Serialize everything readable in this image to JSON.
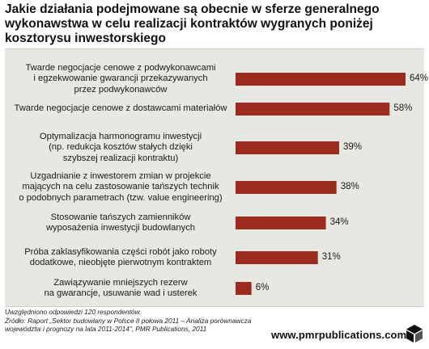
{
  "title_lines": [
    "Jakie działania podejmowane są obecnie w sferze generalnego",
    "wykonawstwa w celu realizacji kontraktów wygranych poniżej",
    "kosztorysu inwestorskiego"
  ],
  "chart_data": {
    "type": "bar",
    "orientation": "horizontal",
    "title": "Jakie działania podejmowane są obecnie w sferze generalnego wykonawstwa w celu realizacji kontraktów wygranych poniżej kosztorysu inwestorskiego",
    "categories": [
      [
        "Twarde negocjacje cenowe z podwykonawcami",
        "i egzekwowanie gwarancji przekazywanych",
        "przez podwykonawców"
      ],
      [
        "Twarde negocjacje cenowe z dostawcami materiałów"
      ],
      [
        "Optymalizacja harmonogramu inwestycji",
        "(np. redukcja kosztów stałych dzięki",
        "szybszej realizacji kontraktu)"
      ],
      [
        "Uzgadnianie z inwestorem zmian w projekcie",
        "mających na celu zastosowanie tańszych technik",
        "o podobnych parametrach (tzw. value engineering)"
      ],
      [
        "Stosowanie tańszych zamienników",
        "wyposażenia inwestycji budowlanych"
      ],
      [
        "Próba zaklasyfikowania części robót jako roboty",
        "dodatkowe, nieobjęte pierwotnym kontraktem"
      ],
      [
        "Zawiązywanie mniejszych rezerw",
        "na gwarancje, usuwanie wad i usterek"
      ]
    ],
    "values": [
      64,
      58,
      39,
      38,
      34,
      31,
      6
    ],
    "value_labels": [
      "64%",
      "58%",
      "39%",
      "38%",
      "34%",
      "31%",
      "6%"
    ],
    "unit": "%",
    "xlim": [
      0,
      64
    ],
    "grid": false,
    "legend": "none",
    "bar_color": "#9b2b1f",
    "background_color": "#e7e8e2"
  },
  "footnotes": [
    "Uwzględniono odpowiedzi 120 respondentów.",
    "Źródło: Raport „Sektor budowlany w Polsce II połowa 2011 – Analiza porównawcza",
    "województw i prognozy na lata 2011-2014”, PMR Publications, 2011"
  ],
  "brand": "www.pmrpublications.com",
  "brand_logo_icon": "cube-icon"
}
